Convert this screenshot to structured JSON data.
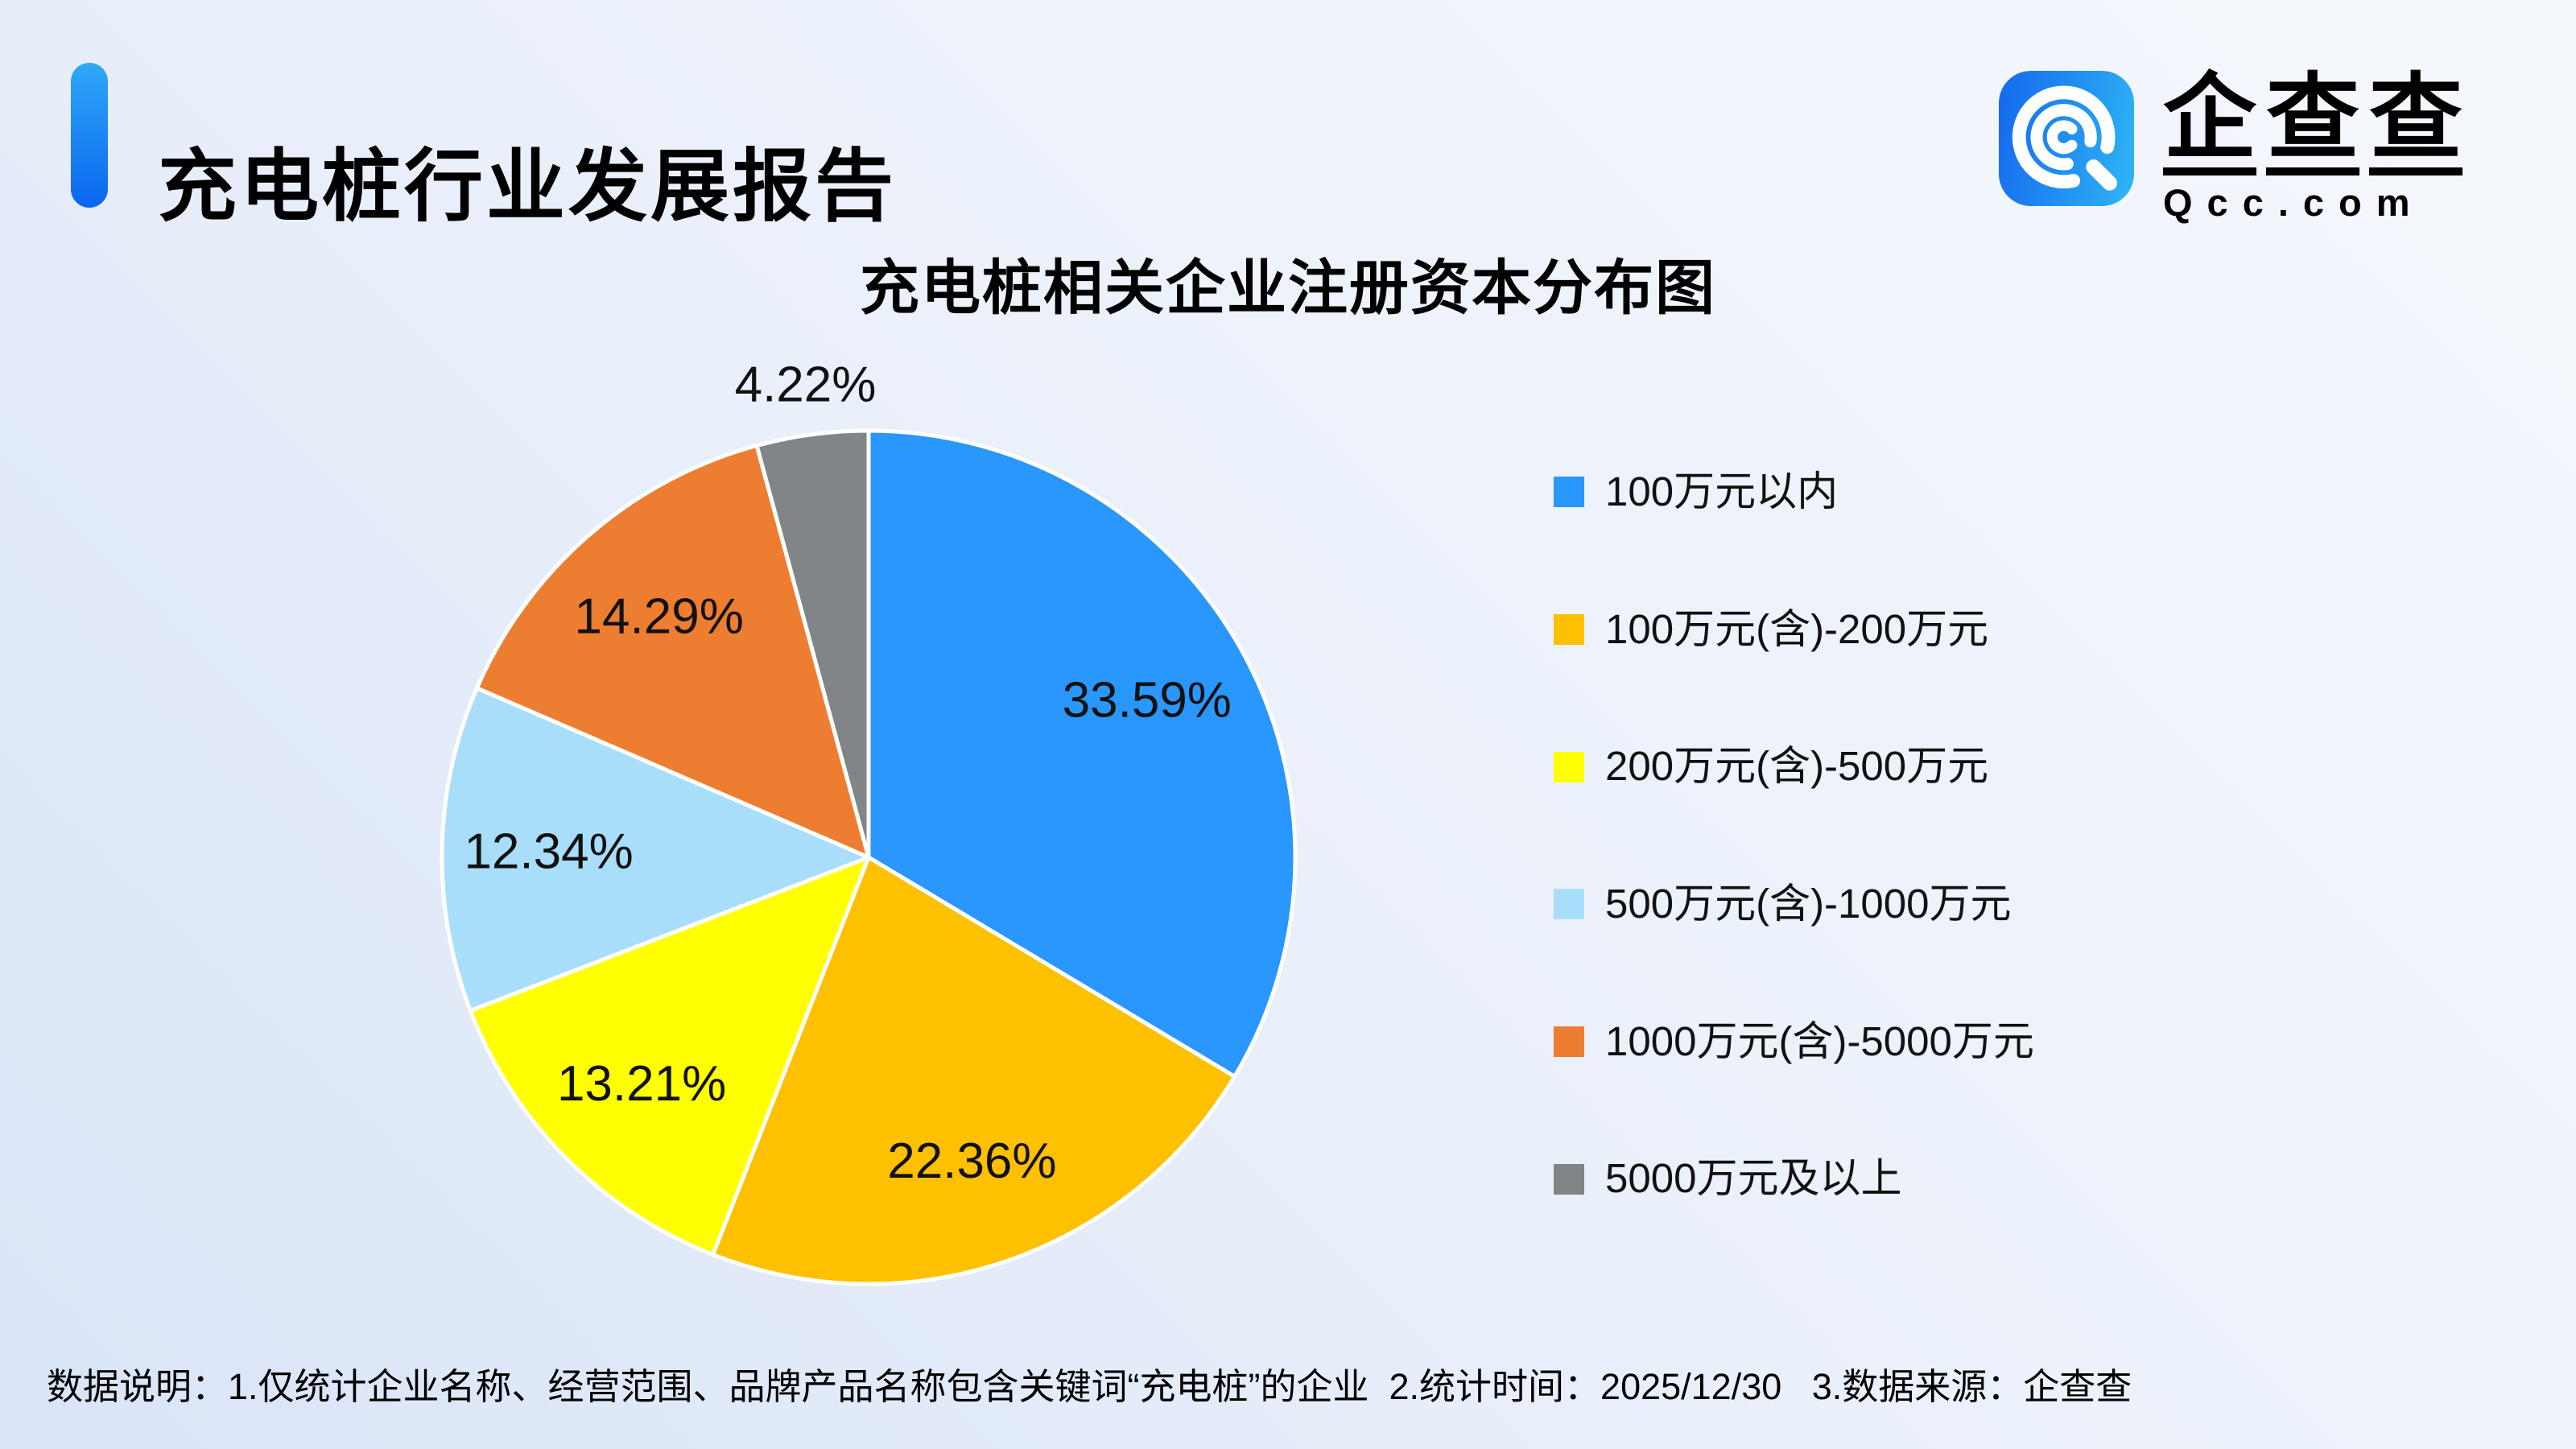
{
  "header": {
    "title": "充电桩行业发展报告"
  },
  "logo": {
    "brand_chars": [
      "企",
      "查",
      "查"
    ],
    "domain": "Qcc.com"
  },
  "chart_data": {
    "type": "pie",
    "title": "充电桩相关企业注册资本分布图",
    "label_suffix": "%",
    "legend_position": "right",
    "start_angle_deg": 0,
    "direction": "clockwise",
    "slices": [
      {
        "label": "100万元以内",
        "value": 33.59,
        "color": "#2997FC"
      },
      {
        "label": "100万元(含)-200万元",
        "value": 22.36,
        "color": "#FFC000"
      },
      {
        "label": "200万元(含)-500万元",
        "value": 13.21,
        "color": "#FFFF00"
      },
      {
        "label": "500万元(含)-1000万元",
        "value": 12.34,
        "color": "#A9DEFA"
      },
      {
        "label": "1000万元(含)-5000万元",
        "value": 14.29,
        "color": "#ED7D31"
      },
      {
        "label": "5000万元及以上",
        "value": 4.22,
        "color": "#828588"
      }
    ]
  },
  "footer": {
    "text": "数据说明：1.仅统计企业名称、经营范围、品牌产品名称包含关键词“充电桩”的企业  2.统计时间：2025/12/30   3.数据来源：企查查"
  },
  "colors": {
    "accent_bar_top": "#2FA8F8",
    "accent_bar_bottom": "#0A66EE",
    "logo_icon_left": "#1468EE",
    "logo_icon_right": "#2EB6F5",
    "background_bottom_left": "#D9E4F7",
    "background_top_right": "#F5F8FD",
    "pie_border": "#FFFFFF",
    "label_text": "#111111"
  }
}
